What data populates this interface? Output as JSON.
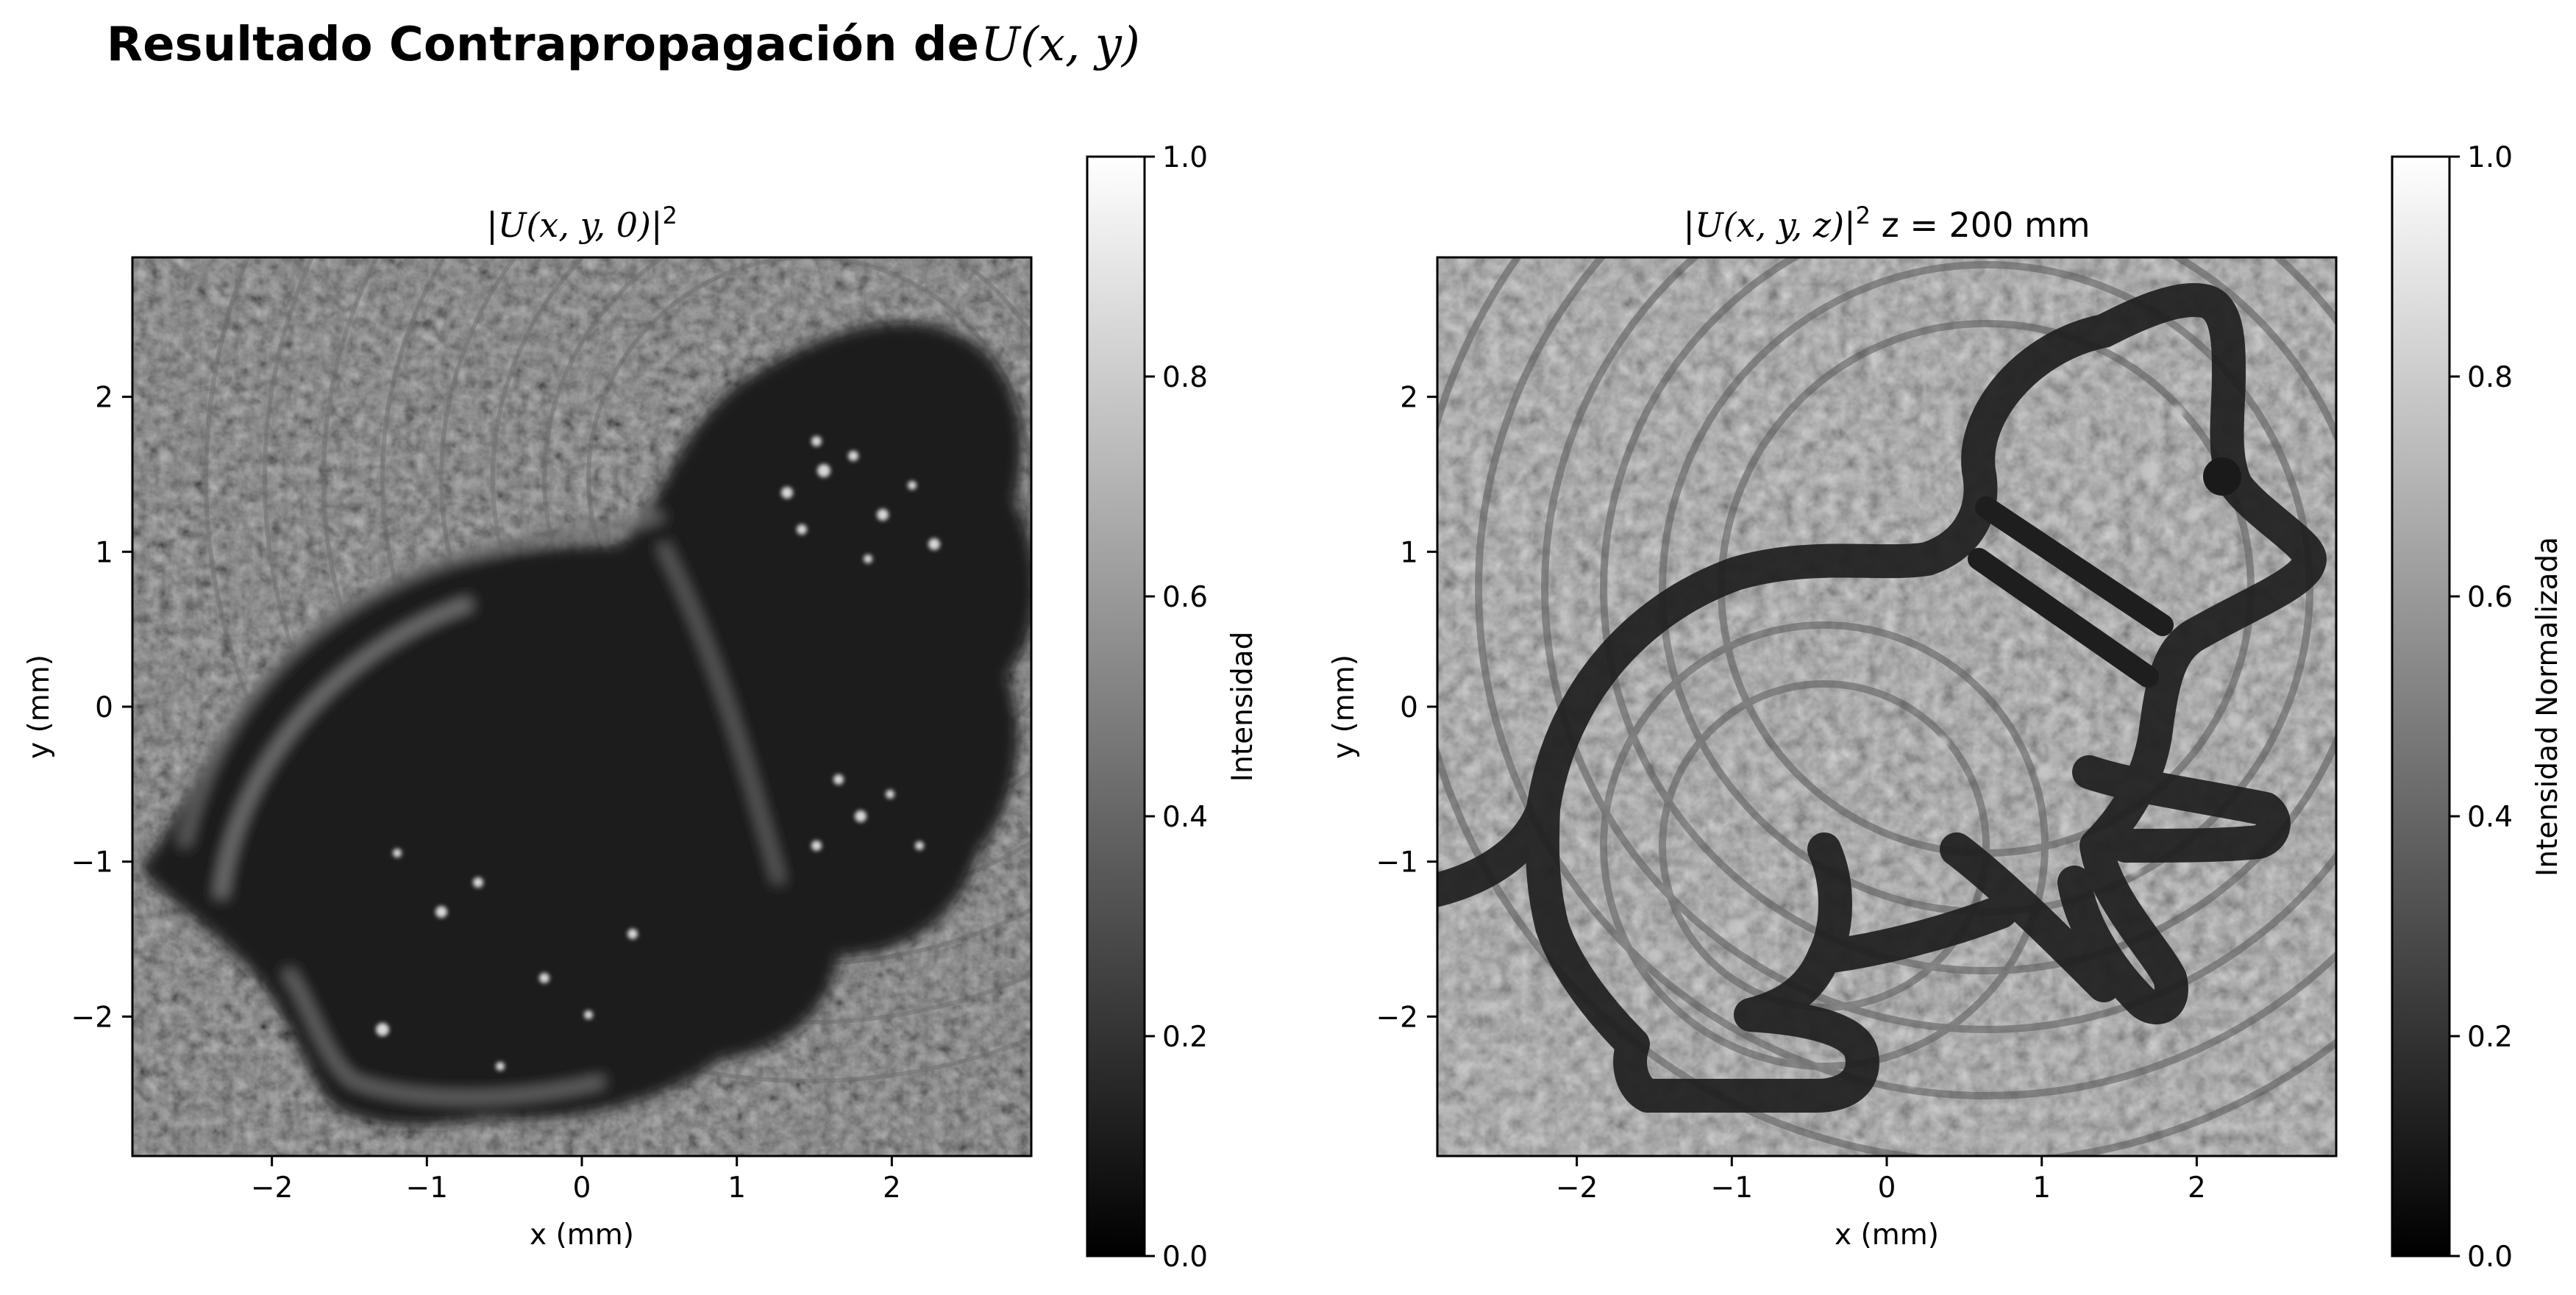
{
  "figure": {
    "title_text": "Resultado Contrapropagación de ",
    "title_math": "U(x, y)"
  },
  "chart_data": [
    {
      "type": "heatmap",
      "title": "|U(x, y, 0)|²",
      "xlabel": "x (mm)",
      "ylabel": "y (mm)",
      "xlim": [
        -2.9,
        2.9
      ],
      "ylim": [
        -2.9,
        2.9
      ],
      "xticks": [
        -2,
        -1,
        0,
        1,
        2
      ],
      "yticks": [
        -2,
        -1,
        0,
        1,
        2
      ],
      "xtick_labels": [
        "−2",
        "−1",
        "0",
        "1",
        "2"
      ],
      "ytick_labels": [
        "−2",
        "−1",
        "0",
        "1",
        "2"
      ],
      "colormap": "gray",
      "colorbar": {
        "label": "Intensidad",
        "range": [
          0.0,
          1.0
        ],
        "ticks": [
          0.0,
          0.2,
          0.4,
          0.6,
          0.8,
          1.0
        ],
        "tick_labels": [
          "0.0",
          "0.2",
          "0.4",
          "0.6",
          "0.8",
          "1.0"
        ]
      },
      "description_tone": "dark, blurred cat silhouette with interference fringes"
    },
    {
      "type": "heatmap",
      "title": "|U(x, y, z)|² z = 200 mm",
      "xlabel": "x (mm)",
      "ylabel": "y (mm)",
      "xlim": [
        -2.9,
        2.9
      ],
      "ylim": [
        -2.9,
        2.9
      ],
      "xticks": [
        -2,
        -1,
        0,
        1,
        2
      ],
      "yticks": [
        -2,
        -1,
        0,
        1,
        2
      ],
      "xtick_labels": [
        "−2",
        "−1",
        "0",
        "1",
        "2"
      ],
      "ytick_labels": [
        "−2",
        "−1",
        "0",
        "1",
        "2"
      ],
      "colormap": "gray",
      "z_mm": 200,
      "colorbar": {
        "label": "Intensidad Normalizada",
        "range": [
          0.0,
          1.0
        ],
        "ticks": [
          0.0,
          0.2,
          0.4,
          0.6,
          0.8,
          1.0
        ],
        "tick_labels": [
          "0.0",
          "0.2",
          "0.4",
          "0.6",
          "0.8",
          "1.0"
        ]
      },
      "description_tone": "mid-gray speckled field with sharp dark cat outline"
    }
  ],
  "panels": [
    {
      "title_prefix": "|",
      "title_math": "U(x, y, 0)",
      "title_suffix": "|",
      "title_sup": "2",
      "title_tail": ""
    },
    {
      "title_prefix": "|",
      "title_math": "U(x, y, z)",
      "title_suffix": "|",
      "title_sup": "2",
      "title_tail": " z = 200 mm"
    }
  ]
}
